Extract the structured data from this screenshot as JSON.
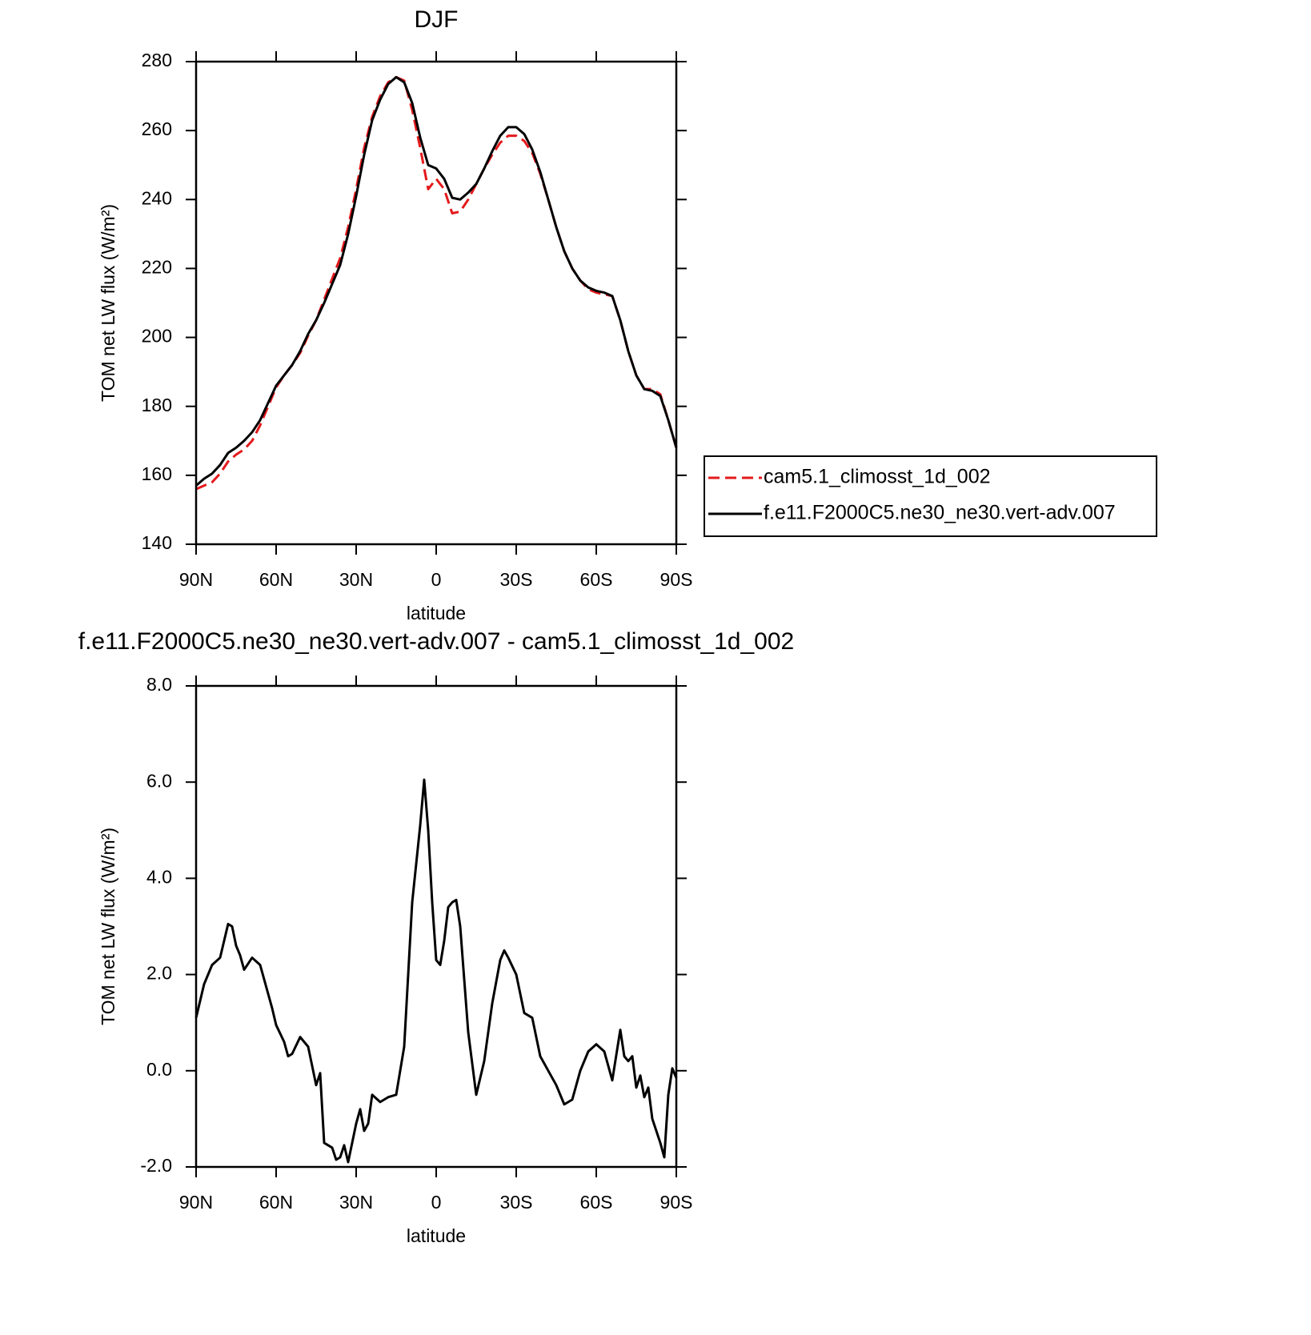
{
  "chart_data": [
    {
      "type": "line",
      "title": "DJF",
      "xlabel": "latitude",
      "ylabel": "TOM net LW flux (W/m²)",
      "x": [
        90,
        87,
        84,
        81,
        78,
        75,
        72,
        69,
        66,
        63,
        60,
        57,
        54,
        51,
        48,
        45,
        42,
        39,
        36,
        33,
        30,
        27,
        24,
        21,
        18,
        15,
        12,
        9,
        6,
        3,
        0,
        -3,
        -6,
        -9,
        -12,
        -15,
        -18,
        -21,
        -24,
        -27,
        -30,
        -33,
        -36,
        -39,
        -42,
        -45,
        -48,
        -51,
        -54,
        -57,
        -60,
        -63,
        -66,
        -69,
        -72,
        -75,
        -78,
        -81,
        -84,
        -87,
        -90
      ],
      "series": [
        {
          "name": "cam5.1_climosst_1d_002",
          "color": "#e41a1c",
          "style": "dashed",
          "values": [
            156,
            157,
            158,
            160.5,
            164,
            166,
            167.5,
            170,
            174.5,
            180,
            185.5,
            189,
            192,
            195.5,
            200.5,
            205,
            211,
            217,
            223,
            232,
            243,
            255,
            264,
            270,
            274,
            275.5,
            274.5,
            266,
            255,
            243,
            246,
            243,
            236,
            236.5,
            240,
            244.5,
            249,
            253,
            256.5,
            258.5,
            258.5,
            257,
            253.5,
            247.5,
            240,
            232,
            225,
            220,
            216.5,
            214,
            213,
            212.5,
            212,
            205,
            196,
            189,
            185,
            185,
            183.5,
            176,
            168
          ]
        },
        {
          "name": "f.e11.F2000C5.ne30_ne30.vert-adv.007",
          "color": "#000000",
          "style": "solid",
          "values": [
            157,
            159,
            160.5,
            163,
            166.5,
            168,
            170,
            172.5,
            176,
            181,
            186,
            189,
            192,
            196,
            201,
            205,
            210,
            215.5,
            221,
            230,
            241,
            253,
            263,
            269,
            273.5,
            275.5,
            274,
            268,
            258,
            250,
            249,
            246,
            240.5,
            240,
            242,
            244.5,
            249,
            254,
            258.5,
            261,
            261,
            259,
            254.5,
            248,
            240,
            232,
            225,
            220,
            216.5,
            214.5,
            213.5,
            213,
            212,
            205,
            196,
            189,
            185,
            184.5,
            183,
            176,
            168
          ]
        }
      ],
      "xlim": [
        90,
        -90
      ],
      "xticks": [
        {
          "value": 90,
          "label": "90N"
        },
        {
          "value": 60,
          "label": "60N"
        },
        {
          "value": 30,
          "label": "30N"
        },
        0,
        {
          "value": -30,
          "label": "30S"
        },
        {
          "value": -60,
          "label": "60S"
        },
        {
          "value": -90,
          "label": "90S"
        }
      ],
      "ylim": [
        140,
        280
      ],
      "yticks": [
        140,
        160,
        180,
        200,
        220,
        240,
        260,
        280
      ],
      "legend": "outside-right"
    },
    {
      "type": "line",
      "title": "f.e11.F2000C5.ne30_ne30.vert-adv.007 - cam5.1_climosst_1d_002",
      "xlabel": "latitude",
      "ylabel": "TOM net LW flux (W/m²)",
      "x": [
        90,
        87,
        84,
        81,
        78,
        76.5,
        75,
        73.5,
        72,
        69,
        66,
        63,
        61.5,
        60,
        57,
        55.5,
        54,
        51,
        48,
        45,
        43.5,
        42,
        39,
        37.5,
        36,
        34.5,
        33,
        30,
        28.5,
        27,
        25.5,
        24,
        21,
        18,
        15,
        12,
        9,
        6,
        4.5,
        3,
        1.5,
        0,
        -1.5,
        -3,
        -4.5,
        -6,
        -7.5,
        -9,
        -12,
        -15,
        -18,
        -21,
        -24,
        -25.5,
        -27,
        -30,
        -33,
        -36,
        -39,
        -42,
        -45,
        -48,
        -51,
        -54,
        -57,
        -60,
        -63,
        -66,
        -69,
        -70.5,
        -72,
        -73.5,
        -75,
        -76.5,
        -78,
        -79.5,
        -81,
        -84,
        -85.5,
        -87,
        -88.5,
        -90
      ],
      "values": [
        1.1,
        1.8,
        2.2,
        2.35,
        3.05,
        3.0,
        2.6,
        2.4,
        2.1,
        2.35,
        2.2,
        1.6,
        1.3,
        0.95,
        0.6,
        0.3,
        0.35,
        0.7,
        0.5,
        -0.3,
        -0.05,
        -1.5,
        -1.6,
        -1.85,
        -1.8,
        -1.55,
        -1.9,
        -1.1,
        -0.8,
        -1.25,
        -1.1,
        -0.5,
        -0.65,
        -0.55,
        -0.5,
        0.5,
        3.5,
        5.1,
        6.05,
        5.0,
        3.5,
        2.3,
        2.2,
        2.7,
        3.4,
        3.5,
        3.55,
        3.0,
        0.8,
        -0.5,
        0.2,
        1.4,
        2.3,
        2.5,
        2.35,
        2.0,
        1.2,
        1.1,
        0.3,
        0.0,
        -0.3,
        -0.7,
        -0.6,
        0.0,
        0.4,
        0.55,
        0.4,
        -0.2,
        0.85,
        0.3,
        0.2,
        0.3,
        -0.35,
        -0.1,
        -0.55,
        -0.35,
        -1.0,
        -1.5,
        -1.8,
        -0.5,
        0.05,
        -0.15
      ],
      "color": "#000000",
      "xlim": [
        90,
        -90
      ],
      "xticks": [
        {
          "value": 90,
          "label": "90N"
        },
        {
          "value": 60,
          "label": "60N"
        },
        {
          "value": 30,
          "label": "30N"
        },
        0,
        {
          "value": -30,
          "label": "30S"
        },
        {
          "value": -60,
          "label": "60S"
        },
        {
          "value": -90,
          "label": "90S"
        }
      ],
      "ylim": [
        -2,
        8
      ],
      "yticks": [
        {
          "value": -2,
          "label": "-2.0"
        },
        {
          "value": 0,
          "label": "0.0"
        },
        {
          "value": 2,
          "label": "2.0"
        },
        {
          "value": 4,
          "label": "4.0"
        },
        {
          "value": 6,
          "label": "6.0"
        },
        {
          "value": 8,
          "label": "8.0"
        }
      ]
    }
  ]
}
